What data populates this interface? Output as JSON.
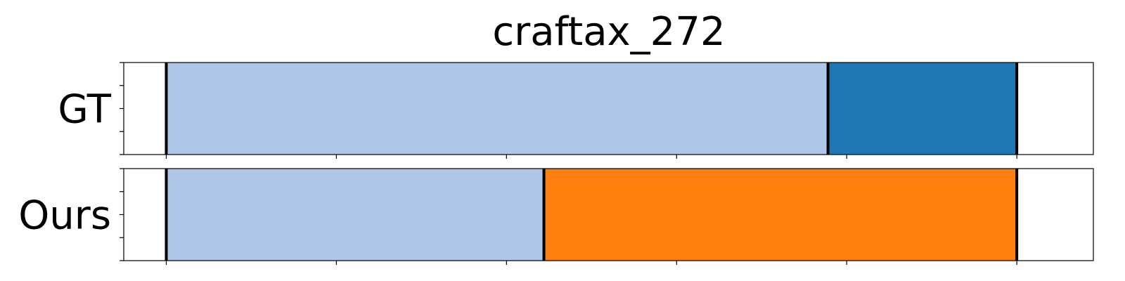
{
  "chart_data": {
    "type": "bar",
    "title": "craftax_272",
    "xlim": [
      -25,
      545
    ],
    "tick_step": 100,
    "rows": [
      {
        "label": "GT",
        "segments": [
          {
            "start": 0,
            "end": 389,
            "color": "#aec7e8"
          },
          {
            "start": 389,
            "end": 500,
            "color": "#1f77b4"
          }
        ]
      },
      {
        "label": "Ours",
        "segments": [
          {
            "start": 0,
            "end": 222,
            "color": "#aec7e8"
          },
          {
            "start": 222,
            "end": 500,
            "color": "#ff7f0e"
          }
        ]
      }
    ],
    "boundary_color": "#000000",
    "grid": false
  }
}
